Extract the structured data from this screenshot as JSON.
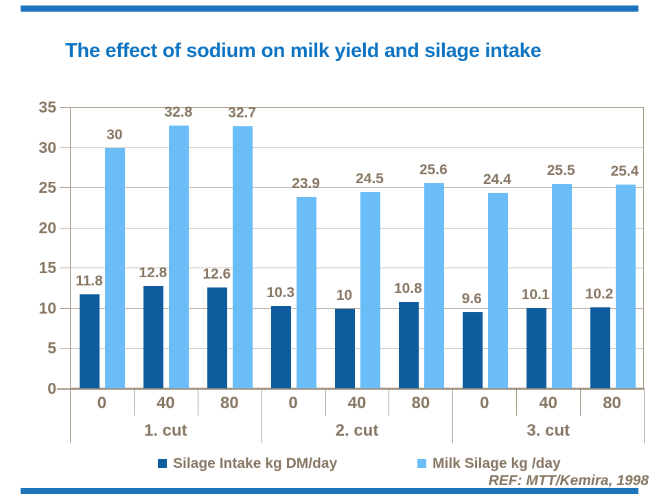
{
  "slide": {
    "title": "The effect of sodium on milk yield and silage intake",
    "reference": "REF: MTT/Kemira, 1998"
  },
  "colors": {
    "title_blue": "#0c73c2",
    "accent_bar_blue": "#1e74bc",
    "dark_series": "#0e5b9e",
    "light_series": "#6bbdf8",
    "text_brown": "#867562",
    "axis_line": "#a0927f",
    "gridline": "#b7ad9e"
  },
  "legend": {
    "items": [
      {
        "label": "Silage Intake kg DM/day",
        "color": "#0e5b9e"
      },
      {
        "label": "Milk Silage kg /day",
        "color": "#6bbdf8"
      }
    ]
  },
  "chart_data": {
    "type": "bar",
    "title": "The effect of sodium on milk yield and silage intake",
    "group_labels": [
      "1. cut",
      "2. cut",
      "3. cut"
    ],
    "categories": [
      "0",
      "40",
      "80",
      "0",
      "40",
      "80",
      "0",
      "40",
      "80"
    ],
    "series": [
      {
        "name": "Silage Intake kg DM/day",
        "color": "#0e5b9e",
        "values": [
          11.8,
          12.8,
          12.6,
          10.3,
          10,
          10.8,
          9.6,
          10.1,
          10.2
        ],
        "labels": [
          "11.8",
          "12.8",
          "12.6",
          "10.3",
          "10",
          "10.8",
          "9.6",
          "10.1",
          "10.2"
        ]
      },
      {
        "name": "Milk Silage kg /day",
        "color": "#6bbdf8",
        "values": [
          30,
          32.8,
          32.7,
          23.9,
          24.5,
          25.6,
          24.4,
          25.5,
          25.4
        ],
        "labels": [
          "30",
          "32.8",
          "32.7",
          "23.9",
          "24.5",
          "25.6",
          "24.4",
          "25.5",
          "25.4"
        ]
      }
    ],
    "y_ticks": [
      0,
      5,
      10,
      15,
      20,
      25,
      30,
      35
    ],
    "ylim": [
      0,
      35
    ],
    "xlabel": "",
    "ylabel": "",
    "grid": true,
    "legend_position": "bottom",
    "annotation": "REF: MTT/Kemira, 1998"
  }
}
